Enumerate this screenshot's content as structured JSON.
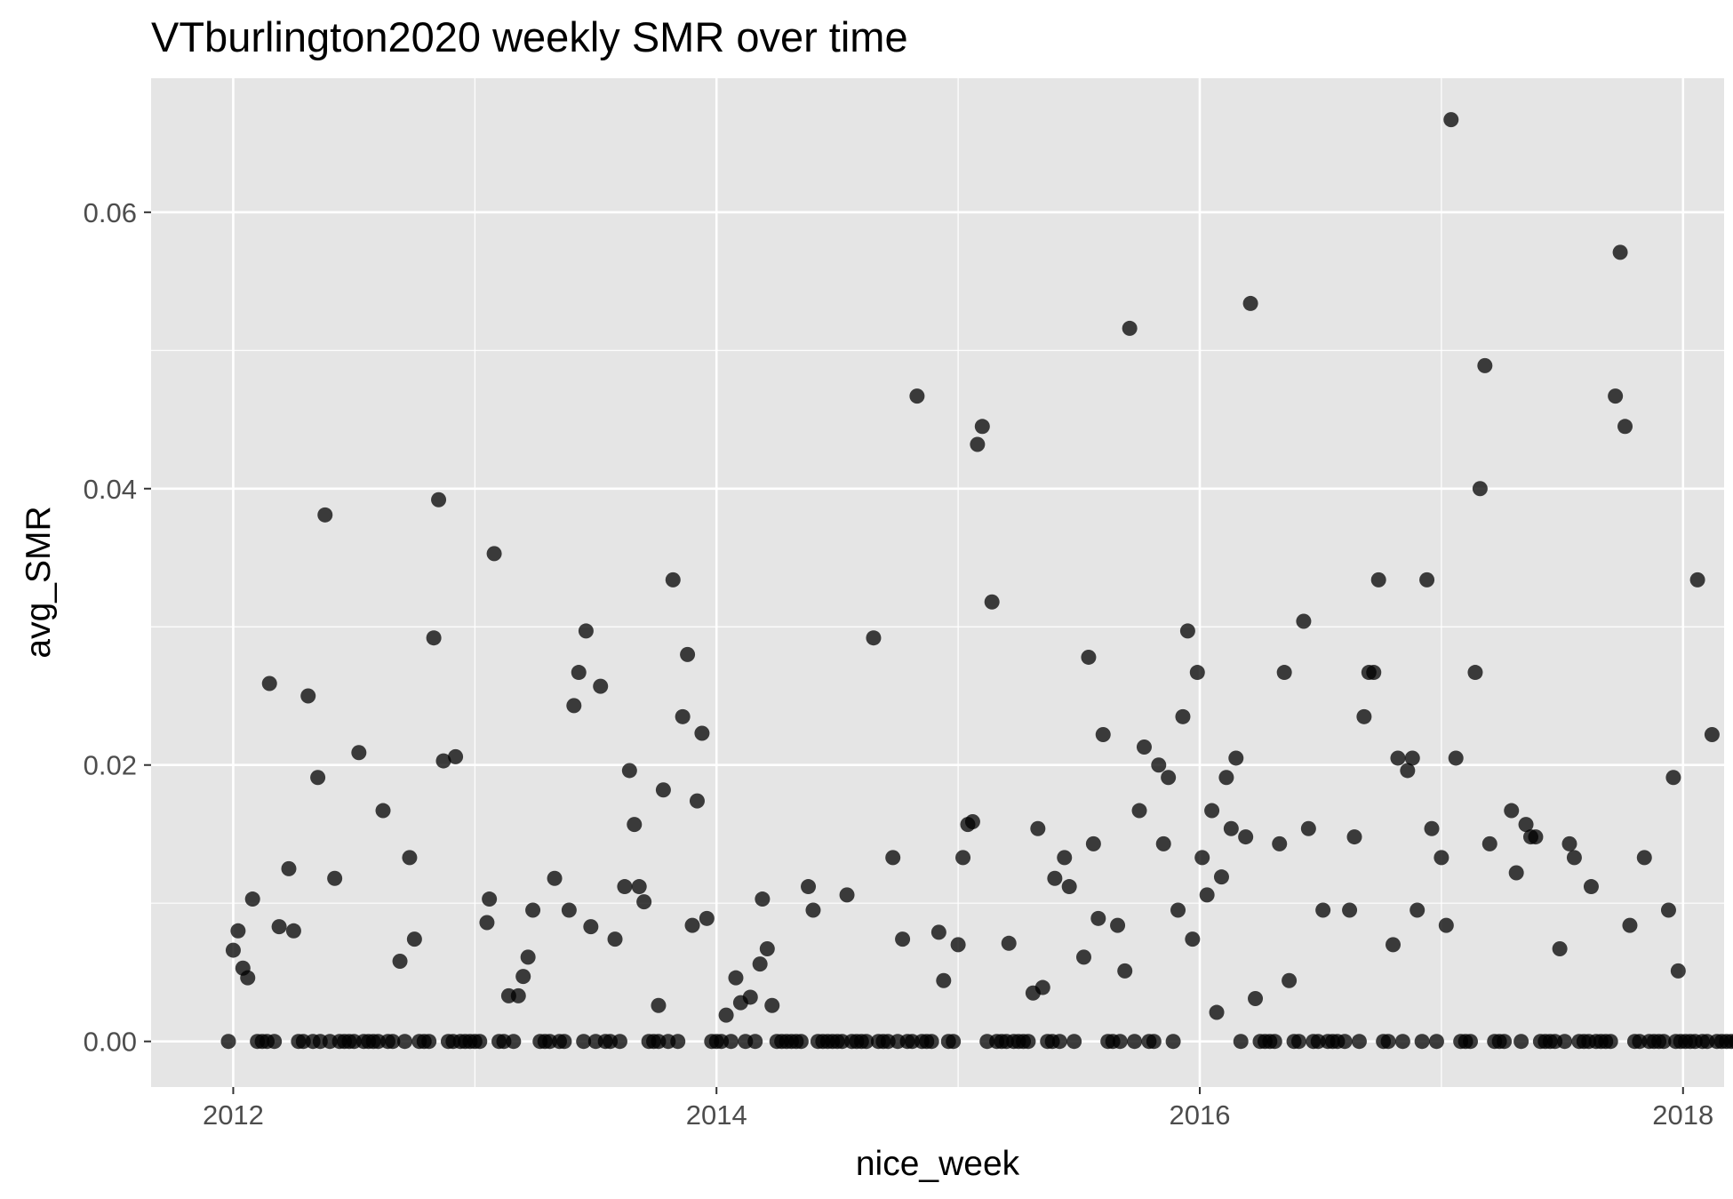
{
  "chart_data": {
    "type": "scatter",
    "title": "VTburlington2020 weekly SMR over time",
    "xlabel": "nice_week",
    "ylabel": "avg_SMR",
    "xlim": [
      2011.66,
      2018.17
    ],
    "ylim": [
      -0.0033,
      0.0697
    ],
    "x_ticks": [
      2012,
      2014,
      2016,
      2018
    ],
    "x_tick_labels": [
      "2012",
      "2014",
      "2016",
      "2018"
    ],
    "y_ticks": [
      0.0,
      0.02,
      0.04,
      0.06
    ],
    "y_tick_labels": [
      "0.00",
      "0.02",
      "0.04",
      "0.06"
    ],
    "grid": true,
    "point_color": "#000000",
    "point_alpha": 0.75,
    "panel_background": "#e5e5e5",
    "grid_color": "#ffffff",
    "points": [
      [
        2012.0,
        0.0066
      ],
      [
        2012.02,
        0.008
      ],
      [
        2012.04,
        0.0053
      ],
      [
        2012.06,
        0.0046
      ],
      [
        2012.08,
        0.0103
      ],
      [
        2012.15,
        0.0259
      ],
      [
        2012.19,
        0.0083
      ],
      [
        2012.23,
        0.0125
      ],
      [
        2012.25,
        0.008
      ],
      [
        2012.31,
        0.025
      ],
      [
        2012.35,
        0.0191
      ],
      [
        2012.38,
        0.0381
      ],
      [
        2012.42,
        0.0118
      ],
      [
        2012.52,
        0.0209
      ],
      [
        2012.62,
        0.0167
      ],
      [
        2012.69,
        0.0058
      ],
      [
        2012.73,
        0.0133
      ],
      [
        2012.75,
        0.0074
      ],
      [
        2012.83,
        0.0292
      ],
      [
        2012.85,
        0.0392
      ],
      [
        2012.87,
        0.0203
      ],
      [
        2012.92,
        0.0206
      ],
      [
        2013.05,
        0.0086
      ],
      [
        2013.06,
        0.0103
      ],
      [
        2013.08,
        0.0353
      ],
      [
        2013.14,
        0.0033
      ],
      [
        2013.18,
        0.0033
      ],
      [
        2013.2,
        0.0047
      ],
      [
        2013.22,
        0.0061
      ],
      [
        2013.24,
        0.0095
      ],
      [
        2013.33,
        0.0118
      ],
      [
        2013.39,
        0.0095
      ],
      [
        2013.41,
        0.0243
      ],
      [
        2013.43,
        0.0267
      ],
      [
        2013.46,
        0.0297
      ],
      [
        2013.48,
        0.0083
      ],
      [
        2013.52,
        0.0257
      ],
      [
        2013.58,
        0.0074
      ],
      [
        2013.62,
        0.0112
      ],
      [
        2013.64,
        0.0196
      ],
      [
        2013.66,
        0.0157
      ],
      [
        2013.68,
        0.0112
      ],
      [
        2013.7,
        0.0101
      ],
      [
        2013.76,
        0.0026
      ],
      [
        2013.78,
        0.0182
      ],
      [
        2013.82,
        0.0334
      ],
      [
        2013.86,
        0.0235
      ],
      [
        2013.88,
        0.028
      ],
      [
        2013.9,
        0.0084
      ],
      [
        2013.92,
        0.0174
      ],
      [
        2013.94,
        0.0223
      ],
      [
        2013.96,
        0.0089
      ],
      [
        2014.04,
        0.0019
      ],
      [
        2014.08,
        0.0046
      ],
      [
        2014.1,
        0.0028
      ],
      [
        2014.14,
        0.0032
      ],
      [
        2014.18,
        0.0056
      ],
      [
        2014.19,
        0.0103
      ],
      [
        2014.21,
        0.0067
      ],
      [
        2014.23,
        0.0026
      ],
      [
        2014.38,
        0.0112
      ],
      [
        2014.4,
        0.0095
      ],
      [
        2014.54,
        0.0106
      ],
      [
        2014.65,
        0.0292
      ],
      [
        2014.73,
        0.0133
      ],
      [
        2014.77,
        0.0074
      ],
      [
        2014.83,
        0.0467
      ],
      [
        2014.92,
        0.0079
      ],
      [
        2014.94,
        0.0044
      ],
      [
        2015.0,
        0.007
      ],
      [
        2015.02,
        0.0133
      ],
      [
        2015.04,
        0.0157
      ],
      [
        2015.06,
        0.0159
      ],
      [
        2015.08,
        0.0432
      ],
      [
        2015.1,
        0.0445
      ],
      [
        2015.14,
        0.0318
      ],
      [
        2015.21,
        0.0071
      ],
      [
        2015.31,
        0.0035
      ],
      [
        2015.33,
        0.0154
      ],
      [
        2015.35,
        0.0039
      ],
      [
        2015.4,
        0.0118
      ],
      [
        2015.44,
        0.0133
      ],
      [
        2015.46,
        0.0112
      ],
      [
        2015.52,
        0.0061
      ],
      [
        2015.54,
        0.0278
      ],
      [
        2015.56,
        0.0143
      ],
      [
        2015.58,
        0.0089
      ],
      [
        2015.6,
        0.0222
      ],
      [
        2015.66,
        0.0084
      ],
      [
        2015.69,
        0.0051
      ],
      [
        2015.71,
        0.0516
      ],
      [
        2015.75,
        0.0167
      ],
      [
        2015.77,
        0.0213
      ],
      [
        2015.83,
        0.02
      ],
      [
        2015.85,
        0.0143
      ],
      [
        2015.87,
        0.0191
      ],
      [
        2015.91,
        0.0095
      ],
      [
        2015.93,
        0.0235
      ],
      [
        2015.95,
        0.0297
      ],
      [
        2015.97,
        0.0074
      ],
      [
        2015.99,
        0.0267
      ],
      [
        2016.01,
        0.0133
      ],
      [
        2016.03,
        0.0106
      ],
      [
        2016.05,
        0.0167
      ],
      [
        2016.07,
        0.0021
      ],
      [
        2016.09,
        0.0119
      ],
      [
        2016.11,
        0.0191
      ],
      [
        2016.13,
        0.0154
      ],
      [
        2016.15,
        0.0205
      ],
      [
        2016.19,
        0.0148
      ],
      [
        2016.21,
        0.0534
      ],
      [
        2016.23,
        0.0031
      ],
      [
        2016.33,
        0.0143
      ],
      [
        2016.35,
        0.0267
      ],
      [
        2016.37,
        0.0044
      ],
      [
        2016.43,
        0.0304
      ],
      [
        2016.45,
        0.0154
      ],
      [
        2016.51,
        0.0095
      ],
      [
        2016.62,
        0.0095
      ],
      [
        2016.64,
        0.0148
      ],
      [
        2016.68,
        0.0235
      ],
      [
        2016.7,
        0.0267
      ],
      [
        2016.72,
        0.0267
      ],
      [
        2016.74,
        0.0334
      ],
      [
        2016.8,
        0.007
      ],
      [
        2016.82,
        0.0205
      ],
      [
        2016.86,
        0.0196
      ],
      [
        2016.88,
        0.0205
      ],
      [
        2016.9,
        0.0095
      ],
      [
        2016.94,
        0.0334
      ],
      [
        2016.96,
        0.0154
      ],
      [
        2017.0,
        0.0133
      ],
      [
        2017.02,
        0.0084
      ],
      [
        2017.04,
        0.0667
      ],
      [
        2017.06,
        0.0205
      ],
      [
        2017.14,
        0.0267
      ],
      [
        2017.16,
        0.04
      ],
      [
        2017.18,
        0.0489
      ],
      [
        2017.2,
        0.0143
      ],
      [
        2017.29,
        0.0167
      ],
      [
        2017.31,
        0.0122
      ],
      [
        2017.35,
        0.0157
      ],
      [
        2017.37,
        0.0148
      ],
      [
        2017.39,
        0.0148
      ],
      [
        2017.49,
        0.0067
      ],
      [
        2017.53,
        0.0143
      ],
      [
        2017.55,
        0.0133
      ],
      [
        2017.62,
        0.0112
      ],
      [
        2017.72,
        0.0467
      ],
      [
        2017.74,
        0.0571
      ],
      [
        2017.76,
        0.0445
      ],
      [
        2017.78,
        0.0084
      ],
      [
        2017.84,
        0.0133
      ],
      [
        2017.94,
        0.0095
      ],
      [
        2017.96,
        0.0191
      ],
      [
        2018.06,
        0.0334
      ],
      [
        2018.12,
        0.0222
      ],
      [
        2017.98,
        0.0051
      ]
    ],
    "zero_points_x": [
      2011.98,
      2012.1,
      2012.12,
      2012.14,
      2012.17,
      2012.27,
      2012.29,
      2012.33,
      2012.36,
      2012.4,
      2012.44,
      2012.46,
      2012.48,
      2012.5,
      2012.54,
      2012.56,
      2012.58,
      2012.6,
      2012.64,
      2012.66,
      2012.71,
      2012.77,
      2012.79,
      2012.81,
      2012.89,
      2012.91,
      2012.94,
      2012.96,
      2012.98,
      2013.0,
      2013.02,
      2013.1,
      2013.12,
      2013.16,
      2013.27,
      2013.29,
      2013.31,
      2013.35,
      2013.37,
      2013.45,
      2013.5,
      2013.54,
      2013.56,
      2013.6,
      2013.72,
      2013.74,
      2013.76,
      2013.8,
      2013.84,
      2013.98,
      2014.0,
      2014.02,
      2014.06,
      2014.12,
      2014.16,
      2014.25,
      2014.27,
      2014.29,
      2014.31,
      2014.33,
      2014.35,
      2014.42,
      2014.44,
      2014.46,
      2014.48,
      2014.5,
      2014.52,
      2014.56,
      2014.58,
      2014.6,
      2014.62,
      2014.67,
      2014.69,
      2014.71,
      2014.75,
      2014.79,
      2014.81,
      2014.85,
      2014.87,
      2014.89,
      2014.96,
      2014.98,
      2015.12,
      2015.16,
      2015.18,
      2015.2,
      2015.23,
      2015.25,
      2015.27,
      2015.29,
      2015.37,
      2015.39,
      2015.42,
      2015.48,
      2015.62,
      2015.64,
      2015.67,
      2015.73,
      2015.79,
      2015.81,
      2015.89,
      2016.17,
      2016.25,
      2016.27,
      2016.29,
      2016.31,
      2016.39,
      2016.41,
      2016.47,
      2016.49,
      2016.53,
      2016.55,
      2016.57,
      2016.6,
      2016.66,
      2016.76,
      2016.78,
      2016.84,
      2016.92,
      2016.98,
      2017.08,
      2017.1,
      2017.12,
      2017.22,
      2017.24,
      2017.26,
      2017.33,
      2017.41,
      2017.43,
      2017.45,
      2017.47,
      2017.51,
      2017.57,
      2017.59,
      2017.61,
      2017.64,
      2017.66,
      2017.68,
      2017.7,
      2017.8,
      2017.82,
      2017.86,
      2017.88,
      2017.9,
      2017.92,
      2017.97,
      2017.99,
      2018.01,
      2018.03,
      2018.05,
      2018.08,
      2018.1,
      2018.14,
      2018.16,
      2018.18,
      2018.2,
      2018.22,
      2018.24,
      2018.26,
      2018.28
    ]
  }
}
